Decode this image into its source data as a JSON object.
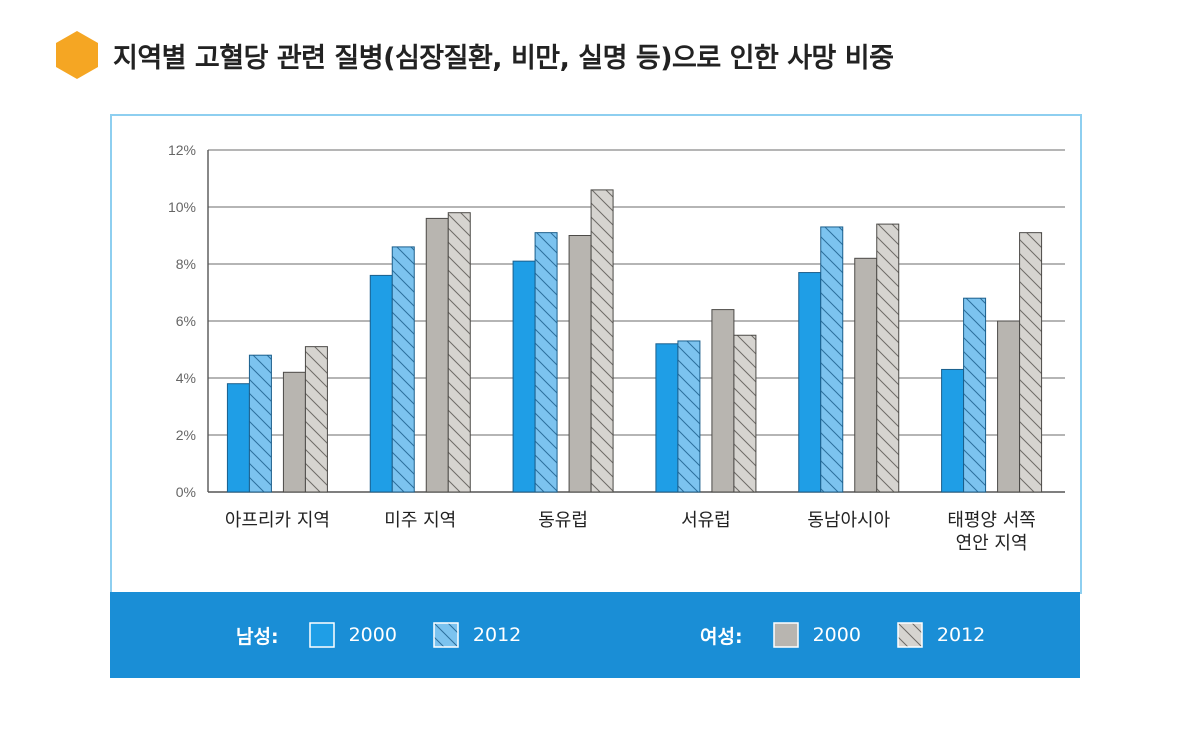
{
  "title": "지역별 고혈당 관련 질병(심장질환, 비만, 실명 등)으로 인한 사망 비중",
  "icon": "orange-hexagon-icon",
  "colors": {
    "male": "#1f9ee6",
    "female": "#b8b5b0",
    "accent": "#f5a623",
    "legend_bg": "#1a8ed6",
    "frame": "#8ecff0"
  },
  "legend": {
    "male_title": "남성:",
    "female_title": "여성:",
    "year_2000": "2000",
    "year_2012": "2012"
  },
  "chart_data": {
    "type": "bar",
    "title": "지역별 고혈당 관련 질병(심장질환, 비만, 실명 등)으로 인한 사망 비중",
    "categories": [
      "아프리카 지역",
      "미주 지역",
      "동유럽",
      "서유럽",
      "동남아시아",
      "태평양 서쪽 연안 지역"
    ],
    "series": [
      {
        "name": "남성 2000",
        "group": "male",
        "pattern": "solid",
        "values": [
          3.8,
          7.6,
          8.1,
          5.2,
          7.7,
          4.3
        ]
      },
      {
        "name": "남성 2012",
        "group": "male",
        "pattern": "hatched",
        "values": [
          4.8,
          8.6,
          9.1,
          5.3,
          9.3,
          6.8
        ]
      },
      {
        "name": "여성 2000",
        "group": "female",
        "pattern": "solid",
        "values": [
          4.2,
          9.6,
          9.0,
          6.4,
          8.2,
          6.0
        ]
      },
      {
        "name": "여성 2012",
        "group": "female",
        "pattern": "hatched",
        "values": [
          5.1,
          9.8,
          10.6,
          5.5,
          9.4,
          9.1
        ]
      }
    ],
    "yticks": [
      "0%",
      "2%",
      "4%",
      "6%",
      "8%",
      "10%",
      "12%"
    ],
    "ylim": [
      0,
      12
    ],
    "xlabel": "",
    "ylabel": "",
    "grid": true
  }
}
